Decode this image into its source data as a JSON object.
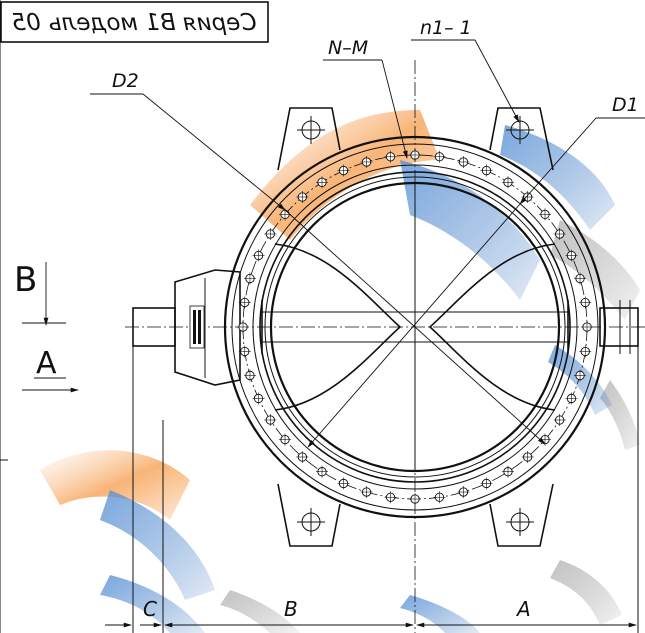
{
  "title_box": {
    "text": "Серия В1 модель 05",
    "mirrored": true
  },
  "labels": {
    "nm": "N–M",
    "n1": "n1– 1",
    "d2": "D2",
    "d1": "D1",
    "view_b": "B",
    "view_a": "A",
    "dim_c": "C",
    "dim_b": "B",
    "dim_a": "A"
  },
  "icons": {
    "arrow_b": "arrow-down-icon",
    "arrow_a": "arrow-right-icon"
  },
  "watermark": {
    "colors": [
      "#f58a2a",
      "#1f62b8",
      "#8a8a8a"
    ]
  }
}
